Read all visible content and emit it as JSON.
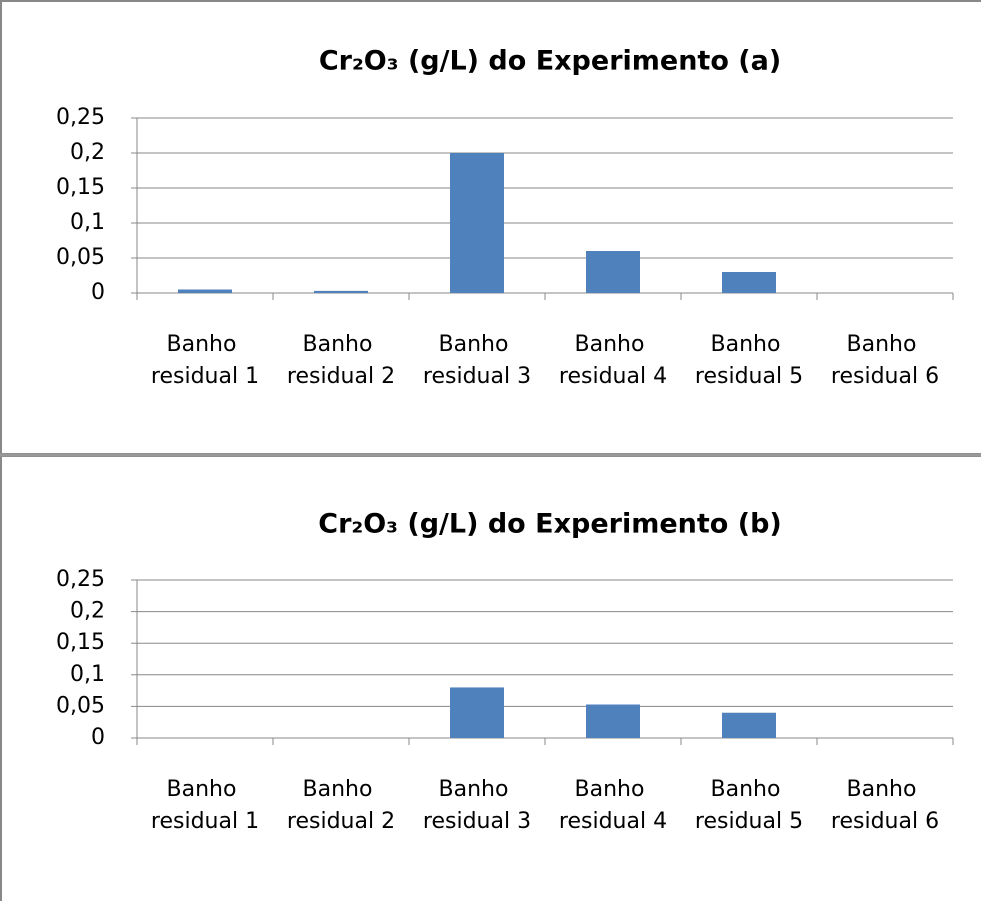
{
  "chart_data": [
    {
      "type": "bar",
      "title": "Cr₂O₃ (g/L) do Experimento (a)",
      "categories": [
        "Banho residual 1",
        "Banho residual 2",
        "Banho residual 3",
        "Banho residual 4",
        "Banho residual 5",
        "Banho residual 6"
      ],
      "values": [
        0.005,
        0.003,
        0.2,
        0.06,
        0.03,
        0
      ],
      "color": "#4f81bd",
      "ylim": [
        0,
        0.25
      ],
      "yticks": [
        0,
        {
          "value": 0.05,
          "label": "0,05"
        },
        {
          "value": 0.1,
          "label": "0,1"
        },
        {
          "value": 0.15,
          "label": "0,15"
        },
        {
          "value": 0.2,
          "label": "0,2"
        },
        {
          "value": 0.25,
          "label": "0,25"
        }
      ],
      "grid": true
    },
    {
      "type": "bar",
      "title": "Cr₂O₃ (g/L) do Experimento (b)",
      "categories": [
        "Banho residual 1",
        "Banho residual 2",
        "Banho residual 3",
        "Banho residual 4",
        "Banho residual 5",
        "Banho residual 6"
      ],
      "values": [
        0,
        0,
        0.08,
        0.053,
        0.04,
        0
      ],
      "color": "#4f81bd",
      "ylim": [
        0,
        0.25
      ],
      "yticks": [
        0,
        {
          "value": 0.05,
          "label": "0,05"
        },
        {
          "value": 0.1,
          "label": "0,1"
        },
        {
          "value": 0.15,
          "label": "0,15"
        },
        {
          "value": 0.2,
          "label": "0,2"
        },
        {
          "value": 0.25,
          "label": "0,25"
        }
      ],
      "grid": true
    }
  ]
}
